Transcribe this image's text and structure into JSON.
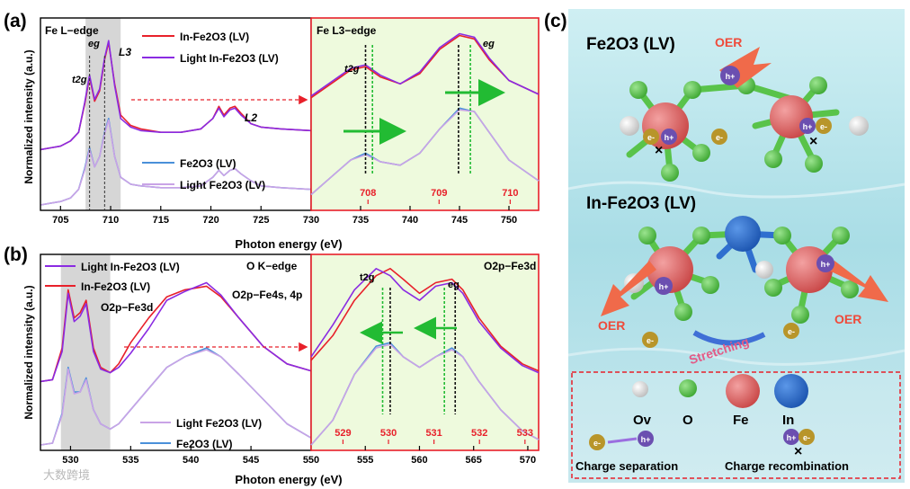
{
  "panels": {
    "a": "(a)",
    "b": "(b)",
    "c": "(c)"
  },
  "watermark": "大数跨境",
  "chart_data": [
    {
      "id": "a-main",
      "type": "line",
      "title": "Fe L−edge",
      "xlabel": "Photon energy (eV)",
      "ylabel": "Normalized intensity (a.u.)",
      "xlim": [
        703,
        730
      ],
      "xticks": [
        705,
        710,
        715,
        720,
        725,
        730
      ],
      "highlight_range": [
        707.5,
        711
      ],
      "peak_labels": [
        "t2g",
        "eg",
        "L3",
        "L2"
      ],
      "legend": [
        "In-Fe2O3 (LV)",
        "Light In-Fe2O3 (LV)",
        "Fe2O3 (LV)",
        "Light Fe2O3 (LV)"
      ],
      "series": [
        {
          "name": "In-Fe2O3 (LV)",
          "color": "#e8202a",
          "x": [
            703,
            704,
            705,
            706,
            706.8,
            707.4,
            707.9,
            708.4,
            708.9,
            709.4,
            709.8,
            710.4,
            711,
            712,
            713,
            715,
            717,
            719,
            720.2,
            720.8,
            721.3,
            721.9,
            722.4,
            723,
            724,
            725,
            727,
            730
          ],
          "y": [
            0.32,
            0.33,
            0.34,
            0.37,
            0.42,
            0.58,
            0.74,
            0.6,
            0.66,
            0.84,
            0.94,
            0.7,
            0.52,
            0.46,
            0.44,
            0.42,
            0.42,
            0.44,
            0.5,
            0.57,
            0.52,
            0.56,
            0.57,
            0.53,
            0.47,
            0.45,
            0.44,
            0.43
          ]
        },
        {
          "name": "Light In-Fe2O3 (LV)",
          "color": "#8a2be2",
          "x": [
            703,
            704,
            705,
            706,
            706.8,
            707.4,
            707.9,
            708.4,
            708.9,
            709.4,
            709.8,
            710.4,
            711,
            712,
            713,
            715,
            717,
            719,
            720.2,
            720.8,
            721.3,
            721.9,
            722.4,
            723,
            724,
            725,
            727,
            730
          ],
          "y": [
            0.32,
            0.33,
            0.34,
            0.37,
            0.42,
            0.59,
            0.75,
            0.61,
            0.67,
            0.85,
            0.95,
            0.69,
            0.5,
            0.45,
            0.43,
            0.42,
            0.42,
            0.44,
            0.5,
            0.56,
            0.51,
            0.55,
            0.56,
            0.52,
            0.47,
            0.45,
            0.44,
            0.43
          ]
        },
        {
          "name": "Fe2O3 (LV)",
          "color": "#4a90d9",
          "x": [
            703,
            704,
            705,
            706,
            706.8,
            707.4,
            707.9,
            708.4,
            708.9,
            709.4,
            709.8,
            710.4,
            711,
            712,
            713,
            715,
            717,
            719,
            720.2,
            720.8,
            721.3,
            721.9,
            722.4,
            723,
            724,
            725,
            727,
            730
          ],
          "y": [
            0.0,
            0.01,
            0.02,
            0.04,
            0.09,
            0.21,
            0.33,
            0.22,
            0.28,
            0.42,
            0.5,
            0.28,
            0.16,
            0.12,
            0.11,
            0.1,
            0.1,
            0.11,
            0.16,
            0.2,
            0.17,
            0.2,
            0.21,
            0.18,
            0.14,
            0.11,
            0.1,
            0.09
          ]
        },
        {
          "name": "Light Fe2O3 (LV)",
          "color": "#c9a3e6",
          "x": [
            703,
            704,
            705,
            706,
            706.8,
            707.4,
            707.9,
            708.4,
            708.9,
            709.4,
            709.8,
            710.4,
            711,
            712,
            713,
            715,
            717,
            719,
            720.2,
            720.8,
            721.3,
            721.9,
            722.4,
            723,
            724,
            725,
            727,
            730
          ],
          "y": [
            0.0,
            0.01,
            0.02,
            0.04,
            0.09,
            0.2,
            0.32,
            0.22,
            0.28,
            0.41,
            0.49,
            0.28,
            0.16,
            0.12,
            0.11,
            0.1,
            0.1,
            0.11,
            0.16,
            0.2,
            0.17,
            0.2,
            0.21,
            0.18,
            0.14,
            0.11,
            0.1,
            0.09
          ]
        }
      ]
    },
    {
      "id": "a-inset",
      "type": "line",
      "title": "Fe L3−edge",
      "xlabel": "Photon energy (eV)",
      "top_xlim": [
        730,
        753
      ],
      "top_xticks": [
        735,
        740,
        745,
        750
      ],
      "bottom_xlim": [
        707.2,
        710.4
      ],
      "bottom_xticks": [
        708,
        709,
        710
      ],
      "peak_labels": [
        "t2g",
        "eg"
      ],
      "arrow_direction": "right",
      "series": [
        {
          "name": "In-Fe2O3 (LV)",
          "color": "#e8202a",
          "x": [
            730,
            732,
            734,
            735.5,
            737,
            739,
            741,
            743,
            745,
            746.5,
            748,
            750,
            753
          ],
          "y": [
            0.62,
            0.7,
            0.78,
            0.8,
            0.74,
            0.7,
            0.76,
            0.9,
            0.98,
            0.96,
            0.84,
            0.72,
            0.64
          ]
        },
        {
          "name": "Light In-Fe2O3 (LV)",
          "color": "#8a2be2",
          "x": [
            730,
            732,
            734,
            735.5,
            737,
            739,
            741,
            743,
            745,
            746.5,
            748,
            750,
            753
          ],
          "y": [
            0.63,
            0.71,
            0.79,
            0.81,
            0.75,
            0.7,
            0.77,
            0.91,
            0.99,
            0.97,
            0.85,
            0.72,
            0.64
          ]
        },
        {
          "name": "Fe2O3 (LV)",
          "color": "#4a90d9",
          "x": [
            730,
            732,
            734,
            735.5,
            737,
            739,
            741,
            743,
            745,
            746.5,
            748,
            750,
            753
          ],
          "y": [
            0.06,
            0.16,
            0.26,
            0.3,
            0.25,
            0.23,
            0.3,
            0.44,
            0.56,
            0.54,
            0.42,
            0.26,
            0.14
          ]
        },
        {
          "name": "Light Fe2O3 (LV)",
          "color": "#c9a3e6",
          "x": [
            730,
            732,
            734,
            735.5,
            737,
            739,
            741,
            743,
            745,
            746.5,
            748,
            750,
            753
          ],
          "y": [
            0.06,
            0.16,
            0.26,
            0.29,
            0.25,
            0.23,
            0.3,
            0.44,
            0.55,
            0.54,
            0.42,
            0.26,
            0.14
          ]
        }
      ],
      "markers": {
        "black": [
          735.5,
          744.9
        ],
        "green": [
          736.2,
          746.1
        ]
      }
    },
    {
      "id": "b-main",
      "type": "line",
      "title": "O K−edge",
      "xlabel": "Photon energy (eV)",
      "ylabel": "Normalized intensity (a.u.)",
      "xlim": [
        527.5,
        550
      ],
      "xticks": [
        530,
        535,
        540,
        545,
        550
      ],
      "highlight_range": [
        529.2,
        533.3
      ],
      "annotations": [
        "O2p−Fe3d",
        "O2p−Fe4s, 4p"
      ],
      "legend": [
        "Light In-Fe2O3 (LV)",
        "In-Fe2O3 (LV)",
        "Light Fe2O3 (LV)",
        "Fe2O3 (LV)"
      ],
      "series": [
        {
          "name": "In-Fe2O3 (LV)",
          "color": "#e8202a",
          "x": [
            527.5,
            528.5,
            529.3,
            529.8,
            530.3,
            530.8,
            531.3,
            531.9,
            532.5,
            533.3,
            534,
            535,
            536.5,
            538,
            539.5,
            541.3,
            542.5,
            544,
            546,
            548,
            550
          ],
          "y": [
            0.36,
            0.37,
            0.55,
            0.88,
            0.72,
            0.75,
            0.82,
            0.55,
            0.44,
            0.41,
            0.46,
            0.58,
            0.72,
            0.84,
            0.88,
            0.9,
            0.84,
            0.72,
            0.56,
            0.46,
            0.42
          ]
        },
        {
          "name": "Light In-Fe2O3 (LV)",
          "color": "#8a2be2",
          "x": [
            527.5,
            528.5,
            529.3,
            529.8,
            530.3,
            530.8,
            531.3,
            531.9,
            532.5,
            533.3,
            534,
            535,
            536.5,
            538,
            539.5,
            541.3,
            542.5,
            544,
            546,
            548,
            550
          ],
          "y": [
            0.36,
            0.37,
            0.53,
            0.86,
            0.7,
            0.73,
            0.8,
            0.53,
            0.43,
            0.41,
            0.44,
            0.52,
            0.66,
            0.82,
            0.87,
            0.92,
            0.85,
            0.72,
            0.56,
            0.46,
            0.42
          ]
        },
        {
          "name": "Fe2O3 (LV)",
          "color": "#4a90d9",
          "x": [
            527.5,
            528.5,
            529.3,
            529.8,
            530.3,
            530.8,
            531.3,
            531.9,
            532.5,
            533.3,
            534,
            535,
            536.5,
            538,
            539.5,
            541.3,
            542.5,
            544,
            546,
            548,
            550
          ],
          "y": [
            0.0,
            0.01,
            0.18,
            0.44,
            0.3,
            0.3,
            0.38,
            0.2,
            0.12,
            0.09,
            0.12,
            0.2,
            0.32,
            0.44,
            0.5,
            0.55,
            0.5,
            0.4,
            0.26,
            0.12,
            0.04
          ]
        },
        {
          "name": "Light Fe2O3 (LV)",
          "color": "#c9a3e6",
          "x": [
            527.5,
            528.5,
            529.3,
            529.8,
            530.3,
            530.8,
            531.3,
            531.9,
            532.5,
            533.3,
            534,
            535,
            536.5,
            538,
            539.5,
            541.3,
            542.5,
            544,
            546,
            548,
            550
          ],
          "y": [
            0.0,
            0.01,
            0.17,
            0.43,
            0.29,
            0.3,
            0.37,
            0.2,
            0.12,
            0.09,
            0.12,
            0.2,
            0.32,
            0.44,
            0.5,
            0.54,
            0.5,
            0.4,
            0.26,
            0.12,
            0.04
          ]
        }
      ]
    },
    {
      "id": "b-inset",
      "type": "line",
      "title": "O2p−Fe3d",
      "xlabel": "Photon energy (eV)",
      "top_xlim": [
        550,
        571
      ],
      "top_xticks": [
        555,
        560,
        565,
        570
      ],
      "bottom_xlim": [
        528.3,
        533.3
      ],
      "bottom_xticks": [
        529,
        530,
        531,
        532,
        533
      ],
      "peak_labels": [
        "t2g",
        "eg"
      ],
      "arrow_direction": "left",
      "series": [
        {
          "name": "In-Fe2O3 (LV)",
          "color": "#e8202a",
          "x": [
            550,
            552,
            554,
            556,
            557.3,
            558.5,
            560,
            561.5,
            563,
            564,
            565.5,
            567.5,
            569.5,
            571
          ],
          "y": [
            0.48,
            0.62,
            0.82,
            0.96,
            1.0,
            0.94,
            0.86,
            0.92,
            0.94,
            0.88,
            0.72,
            0.56,
            0.46,
            0.42
          ]
        },
        {
          "name": "Light In-Fe2O3 (LV)",
          "color": "#8a2be2",
          "x": [
            550,
            552,
            554,
            556,
            557.3,
            558.5,
            560,
            561.5,
            563,
            564,
            565.5,
            567.5,
            569.5,
            571
          ],
          "y": [
            0.5,
            0.68,
            0.88,
            1.0,
            0.96,
            0.88,
            0.82,
            0.9,
            0.92,
            0.86,
            0.7,
            0.55,
            0.45,
            0.41
          ]
        },
        {
          "name": "Fe2O3 (LV)",
          "color": "#4a90d9",
          "x": [
            550,
            552,
            554,
            556,
            557.3,
            558.5,
            560,
            561.5,
            563,
            564,
            565.5,
            567.5,
            569.5,
            571
          ],
          "y": [
            0.0,
            0.14,
            0.4,
            0.56,
            0.58,
            0.5,
            0.44,
            0.5,
            0.55,
            0.5,
            0.36,
            0.2,
            0.08,
            0.03
          ]
        },
        {
          "name": "Light Fe2O3 (LV)",
          "color": "#c9a3e6",
          "x": [
            550,
            552,
            554,
            556,
            557.3,
            558.5,
            560,
            561.5,
            563,
            564,
            565.5,
            567.5,
            569.5,
            571
          ],
          "y": [
            0.0,
            0.14,
            0.4,
            0.55,
            0.57,
            0.5,
            0.44,
            0.5,
            0.54,
            0.5,
            0.36,
            0.2,
            0.08,
            0.03
          ]
        }
      ],
      "markers": {
        "black": [
          557.3,
          563.3
        ],
        "green": [
          556.6,
          562.3
        ]
      }
    }
  ],
  "schematic": {
    "title_top": "Fe2O3 (LV)",
    "title_bottom": "In-Fe2O3 (LV)",
    "oer": "OER",
    "stretching": "Stretching",
    "hole": "h+",
    "electron": "e-",
    "legend": {
      "items": [
        "Ov",
        "O",
        "Fe",
        "In"
      ],
      "charge_separation": "Charge separation",
      "charge_recombination": "Charge recombination"
    },
    "colors": {
      "ov": "#e4e4e4",
      "o": "#59c34a",
      "fe": "#dc5b5b",
      "in": "#2f6fcf",
      "bg": "#bfe3ea"
    }
  }
}
